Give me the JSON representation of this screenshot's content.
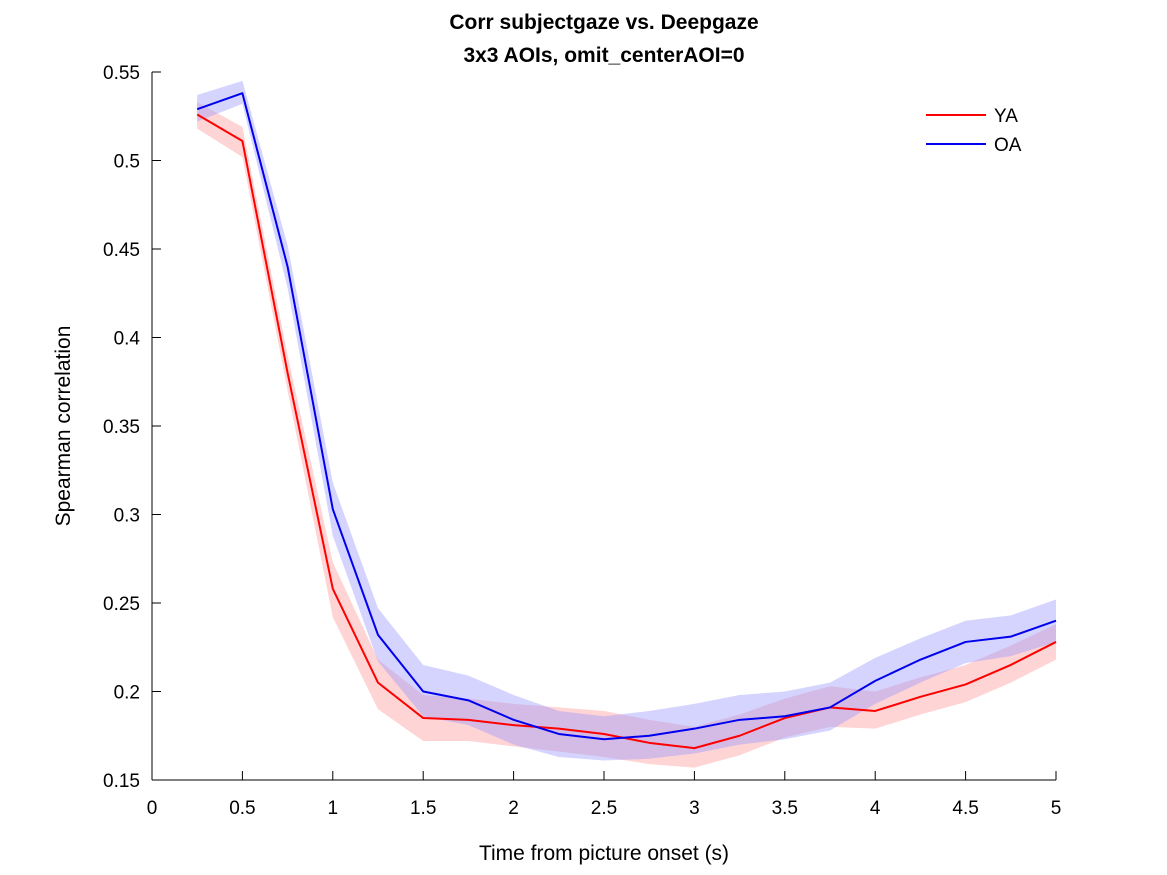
{
  "chart_data": {
    "type": "line",
    "title": [
      "Corr subjectgaze vs. Deepgaze",
      "3x3 AOIs, omit_centerAOI=0"
    ],
    "xlabel": "Time from picture onset (s)",
    "ylabel": "Spearman correlation",
    "xlim": [
      0,
      5
    ],
    "ylim": [
      0.15,
      0.55
    ],
    "xticks": [
      0,
      0.5,
      1,
      1.5,
      2,
      2.5,
      3,
      3.5,
      4,
      4.5,
      5
    ],
    "xtick_labels": [
      "0",
      "0.5",
      "1",
      "1.5",
      "2",
      "2.5",
      "3",
      "3.5",
      "4",
      "4.5",
      "5"
    ],
    "yticks": [
      0.15,
      0.2,
      0.25,
      0.3,
      0.35,
      0.4,
      0.45,
      0.5,
      0.55
    ],
    "ytick_labels": [
      "0.15",
      "0.2",
      "0.25",
      "0.3",
      "0.35",
      "0.4",
      "0.45",
      "0.5",
      "0.55"
    ],
    "grid": false,
    "legend_position": "top-right",
    "x": [
      0.25,
      0.5,
      0.75,
      1.0,
      1.25,
      1.5,
      1.75,
      2.0,
      2.25,
      2.5,
      2.75,
      3.0,
      3.25,
      3.5,
      3.75,
      4.0,
      4.25,
      4.5,
      4.75,
      5.0
    ],
    "series": [
      {
        "name": "YA",
        "color": "#ff0000",
        "band_color": "#ff9999",
        "values": [
          0.526,
          0.511,
          0.38,
          0.258,
          0.205,
          0.185,
          0.184,
          0.181,
          0.179,
          0.176,
          0.171,
          0.168,
          0.175,
          0.185,
          0.191,
          0.189,
          0.197,
          0.204,
          0.215,
          0.228
        ],
        "lower": [
          0.518,
          0.502,
          0.37,
          0.242,
          0.19,
          0.172,
          0.172,
          0.169,
          0.166,
          0.163,
          0.159,
          0.157,
          0.164,
          0.174,
          0.18,
          0.179,
          0.187,
          0.194,
          0.205,
          0.218
        ],
        "upper": [
          0.533,
          0.519,
          0.39,
          0.273,
          0.218,
          0.198,
          0.196,
          0.193,
          0.191,
          0.189,
          0.184,
          0.18,
          0.187,
          0.196,
          0.203,
          0.2,
          0.208,
          0.215,
          0.226,
          0.238
        ]
      },
      {
        "name": "OA",
        "color": "#0000ee",
        "band_color": "#9999ff",
        "values": [
          0.529,
          0.538,
          0.44,
          0.303,
          0.232,
          0.2,
          0.195,
          0.184,
          0.176,
          0.173,
          0.175,
          0.179,
          0.184,
          0.186,
          0.191,
          0.206,
          0.218,
          0.228,
          0.231,
          0.24
        ],
        "lower": [
          0.522,
          0.532,
          0.428,
          0.288,
          0.217,
          0.186,
          0.181,
          0.17,
          0.163,
          0.161,
          0.162,
          0.165,
          0.17,
          0.173,
          0.178,
          0.193,
          0.205,
          0.216,
          0.22,
          0.228
        ],
        "upper": [
          0.537,
          0.545,
          0.452,
          0.318,
          0.247,
          0.215,
          0.209,
          0.198,
          0.189,
          0.186,
          0.189,
          0.193,
          0.198,
          0.2,
          0.205,
          0.219,
          0.23,
          0.24,
          0.243,
          0.252
        ]
      }
    ]
  }
}
